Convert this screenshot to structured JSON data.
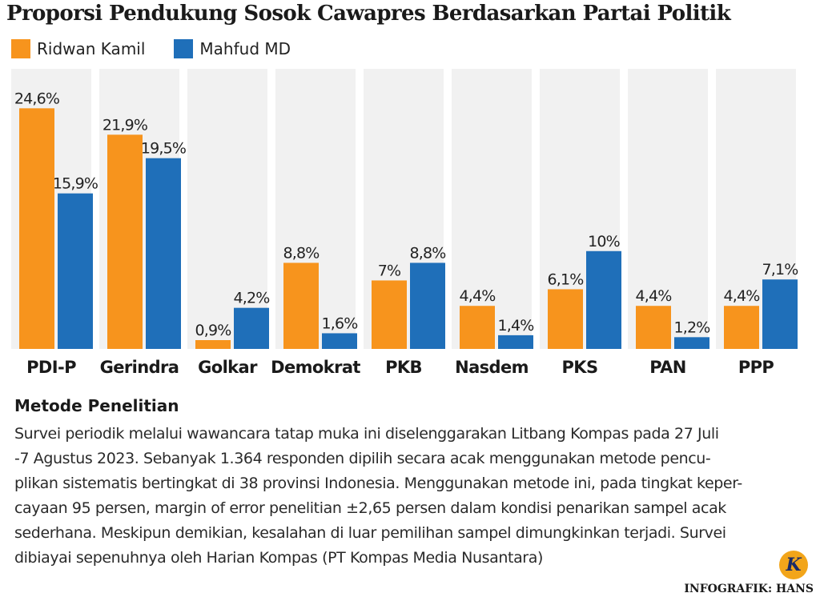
{
  "title": "Proporsi Pendukung Sosok Cawapres Berdasarkan Partai Politik",
  "colors": {
    "ridwan": "#f7941d",
    "mahfud": "#1f6fb9",
    "panel": "#f1f1f1"
  },
  "legend": [
    {
      "name": "Ridwan Kamil",
      "color": "#f7941d"
    },
    {
      "name": "Mahfud MD",
      "color": "#1f6fb9"
    }
  ],
  "chart_data": {
    "type": "bar",
    "categories": [
      "PDI-P",
      "Gerindra",
      "Golkar",
      "Demokrat",
      "PKB",
      "Nasdem",
      "PKS",
      "PAN",
      "PPP"
    ],
    "series": [
      {
        "name": "Ridwan Kamil",
        "values": [
          24.6,
          21.9,
          0.9,
          8.8,
          7,
          4.4,
          6.1,
          4.4,
          4.4
        ],
        "labels": [
          "24,6%",
          "21,9%",
          "0,9%",
          "8,8%",
          "7%",
          "4,4%",
          "6,1%",
          "4,4%",
          "4,4%"
        ]
      },
      {
        "name": "Mahfud MD",
        "values": [
          15.9,
          19.5,
          4.2,
          1.6,
          8.8,
          1.4,
          10,
          1.2,
          7.1
        ],
        "labels": [
          "15,9%",
          "19,5%",
          "4,2%",
          "1,6%",
          "8,8%",
          "1,4%",
          "10%",
          "1,2%",
          "7,1%"
        ]
      }
    ],
    "ylim": [
      0,
      27
    ],
    "legend_position": "top-left",
    "grid": false
  },
  "method": {
    "title": "Metode Penelitian",
    "lines": [
      "Survei periodik melalui wawancara tatap muka ini diselenggarakan Litbang Kompas pada 27 Juli",
      "-7 Agustus 2023. Sebanyak 1.364 responden dipilih secara acak menggunakan metode pencu-",
      "plikan sistematis bertingkat di 38 provinsi Indonesia. Menggunakan metode ini, pada tingkat keper-",
      "cayaan 95 persen, margin of error penelitian ±2,65 persen dalam kondisi penarikan sampel acak",
      "sederhana. Meskipun demikian, kesalahan di luar pemilihan sampel dimungkinkan terjadi. Survei",
      "dibiayai sepenuhnya oleh Harian Kompas (PT Kompas Media Nusantara)"
    ]
  },
  "logo_letter": "K",
  "credit": "INFOGRAFIK: HANS"
}
